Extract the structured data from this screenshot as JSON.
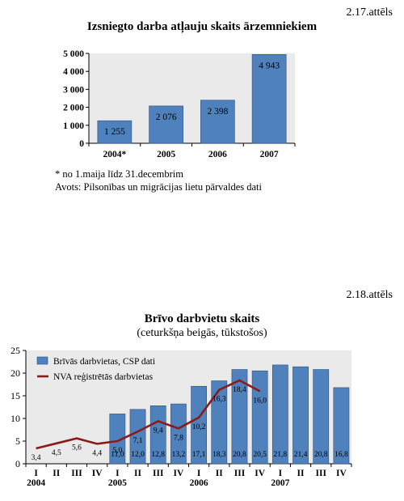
{
  "figures": [
    {
      "label": "2.17.attēls",
      "title": "Izsniegto darba atļauju skaits ārzemniekiem",
      "notes": [
        "* no 1.maija līdz 31.decembrim",
        "Avots: Pilsonības un migrācijas lietu pārvaldes dati"
      ]
    },
    {
      "label": "2.18.attēls",
      "title": "Brīvo darbvietu skaits",
      "subtitle": "(ceturkšņa beigās, tūkstošos)"
    }
  ],
  "chart_data": [
    {
      "type": "bar",
      "title": "Izsniegto darba atļauju skaits ārzemniekiem",
      "categories": [
        "2004*",
        "2005",
        "2006",
        "2007"
      ],
      "values": [
        1255,
        2076,
        2398,
        4943
      ],
      "value_labels": [
        "1 255",
        "2 076",
        "2 398",
        "4 943"
      ],
      "ylim": [
        0,
        5000
      ],
      "yticks": [
        0,
        1000,
        2000,
        3000,
        4000,
        5000
      ],
      "ytick_labels": [
        "0",
        "1 000",
        "2 000",
        "3 000",
        "4 000",
        "5 000"
      ],
      "grid": false,
      "bar_color": "#4f81bd",
      "plot_bg": "#eaeaea"
    },
    {
      "type": "bar+line",
      "title": "Brīvo darbvietu skaits",
      "subtitle": "(ceturkšņa beigās, tūkstošos)",
      "quarters": [
        "I",
        "II",
        "III",
        "IV",
        "I",
        "II",
        "III",
        "IV",
        "I",
        "II",
        "III",
        "IV",
        "I",
        "II",
        "III",
        "IV"
      ],
      "years": [
        "2004",
        "2005",
        "2006",
        "2007"
      ],
      "series": [
        {
          "name": "Brīvās darbvietas, CSP dati",
          "kind": "bar",
          "color": "#4f81bd",
          "values": [
            null,
            null,
            null,
            null,
            11.0,
            12.0,
            12.8,
            13.2,
            17.1,
            18.3,
            20.8,
            20.5,
            21.8,
            21.4,
            20.8,
            16.8
          ],
          "labels": [
            "",
            "",
            "",
            "",
            "11,0",
            "12,0",
            "12,8",
            "13,2",
            "17,1",
            "18,3",
            "20,8",
            "20,5",
            "21,8",
            "21,4",
            "20,8",
            "16,8"
          ]
        },
        {
          "name": "NVA reģistrētās darbvietas",
          "kind": "line",
          "color": "#8b1a1a",
          "values": [
            3.4,
            4.5,
            5.6,
            4.4,
            5.0,
            7.1,
            9.4,
            7.8,
            10.2,
            16.3,
            18.4,
            16.0,
            null,
            null,
            null,
            null
          ],
          "labels": [
            "3,4",
            "4,5",
            "5,6",
            "4,4",
            "5,0",
            "7,1",
            "9,4",
            "7,8",
            "10,2",
            "16,3",
            "18,4",
            "16,0",
            "",
            "",
            "",
            ""
          ]
        }
      ],
      "ylim": [
        0,
        25
      ],
      "yticks": [
        0,
        5,
        10,
        15,
        20,
        25
      ],
      "legend": "top-left",
      "grid": false,
      "plot_bg": "#eaeaea"
    }
  ]
}
